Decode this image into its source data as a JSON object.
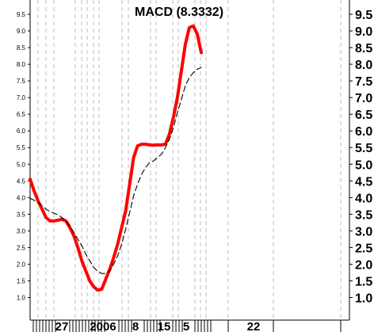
{
  "chart_data": {
    "type": "line",
    "title": "MACD (8.3332)",
    "ylim": [
      0.55,
      9.75
    ],
    "y_ticks": [
      "1.0",
      "1.5",
      "2.0",
      "2.5",
      "3.0",
      "3.5",
      "4.0",
      "4.5",
      "5.0",
      "5.5",
      "6.0",
      "6.5",
      "7.0",
      "7.5",
      "8.0",
      "8.5",
      "9.0",
      "9.5"
    ],
    "x_labels": [
      "27",
      "2006",
      "8",
      "15",
      "5",
      "22"
    ],
    "legend": "none",
    "grid": "vertical dashed",
    "series": [
      {
        "role": "macd",
        "color": "#ff0000",
        "style": "solid-thick",
        "values": [
          4.55,
          4.2,
          3.9,
          3.65,
          3.4,
          3.3,
          3.3,
          3.32,
          3.35,
          3.3,
          3.1,
          2.85,
          2.5,
          2.1,
          1.8,
          1.5,
          1.32,
          1.22,
          1.25,
          1.55,
          1.85,
          2.2,
          2.6,
          3.1,
          3.6,
          4.4,
          5.2,
          5.55,
          5.6,
          5.6,
          5.58,
          5.57,
          5.58,
          5.58,
          5.6,
          5.9,
          6.4,
          7.0,
          7.8,
          8.6,
          9.1,
          9.15,
          8.9,
          8.35
        ]
      },
      {
        "role": "signal",
        "color": "#000000",
        "style": "dashed",
        "values": [
          3.98,
          3.92,
          3.85,
          3.75,
          3.65,
          3.58,
          3.53,
          3.48,
          3.4,
          3.3,
          3.15,
          2.95,
          2.75,
          2.55,
          2.3,
          2.1,
          1.9,
          1.78,
          1.72,
          1.72,
          1.8,
          2.0,
          2.25,
          2.6,
          3.05,
          3.55,
          4.05,
          4.4,
          4.7,
          4.9,
          5.05,
          5.1,
          5.2,
          5.3,
          5.5,
          5.75,
          6.1,
          6.55,
          6.95,
          7.35,
          7.6,
          7.75,
          7.85,
          7.9
        ]
      }
    ]
  }
}
